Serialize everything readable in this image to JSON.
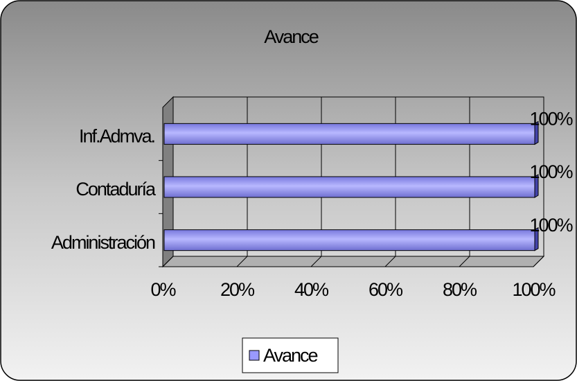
{
  "chart_data": {
    "type": "bar",
    "orientation": "horizontal",
    "title": "Avance",
    "categories": [
      "Administración",
      "Contaduría",
      "Inf.Admva."
    ],
    "series": [
      {
        "name": "Avance",
        "color": "#9999ff",
        "values": [
          100,
          100,
          100
        ],
        "value_labels": [
          "100%",
          "100%",
          "100%"
        ]
      }
    ],
    "xlim": [
      0,
      100
    ],
    "xticks": [
      {
        "value": 0,
        "label": "0%"
      },
      {
        "value": 20,
        "label": "20%"
      },
      {
        "value": 40,
        "label": "40%"
      },
      {
        "value": 60,
        "label": "60%"
      },
      {
        "value": 80,
        "label": "80%"
      },
      {
        "value": 100,
        "label": "100%"
      }
    ],
    "grid": true,
    "legend": "bottom"
  }
}
